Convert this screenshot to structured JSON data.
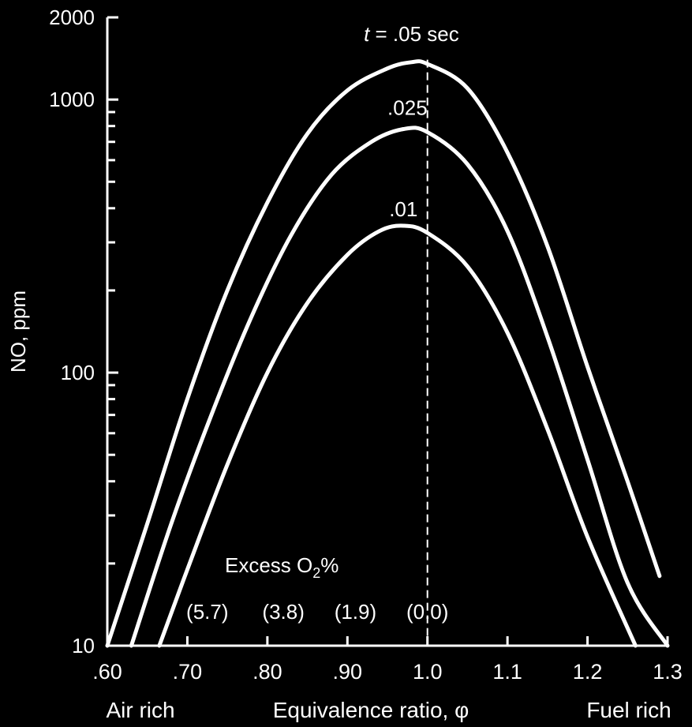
{
  "chart_data": {
    "type": "line",
    "xlabel": "Equivalence ratio, φ",
    "ylabel": "NO, ppm",
    "xlim": [
      0.6,
      1.3
    ],
    "ylim": [
      10,
      2000
    ],
    "y_scale": "log",
    "x_ticks": [
      0.6,
      0.7,
      0.8,
      0.9,
      1.0,
      1.1,
      1.2,
      1.3
    ],
    "x_tick_labels": [
      ".60",
      ".70",
      ".80",
      ".90",
      "1.0",
      "1.1",
      "1.2",
      "1.3"
    ],
    "y_tick_labels": [
      {
        "value": 10,
        "label": "10"
      },
      {
        "value": 100,
        "label": "100"
      },
      {
        "value": 1000,
        "label": "1000"
      },
      {
        "value": 2000,
        "label": "2000"
      }
    ],
    "x_side_labels": {
      "left": "Air rich",
      "right": "Fuel rich"
    },
    "reference_line": {
      "x": 1.0,
      "style": "dashed"
    },
    "series": [
      {
        "name": "t = .05 sec",
        "label_var": "t",
        "label_rest": " = .05 sec",
        "points": [
          [
            0.6,
            10
          ],
          [
            0.65,
            28
          ],
          [
            0.7,
            80
          ],
          [
            0.75,
            200
          ],
          [
            0.8,
            420
          ],
          [
            0.85,
            750
          ],
          [
            0.9,
            1080
          ],
          [
            0.95,
            1300
          ],
          [
            0.98,
            1370
          ],
          [
            1.0,
            1350
          ],
          [
            1.05,
            1100
          ],
          [
            1.1,
            640
          ],
          [
            1.15,
            290
          ],
          [
            1.2,
            105
          ],
          [
            1.25,
            40
          ],
          [
            1.29,
            18
          ]
        ]
      },
      {
        "name": ".025",
        "label_var": "",
        "label_rest": ".025",
        "points": [
          [
            0.63,
            10
          ],
          [
            0.68,
            28
          ],
          [
            0.73,
            70
          ],
          [
            0.78,
            160
          ],
          [
            0.83,
            320
          ],
          [
            0.88,
            530
          ],
          [
            0.93,
            700
          ],
          [
            0.97,
            780
          ],
          [
            1.0,
            760
          ],
          [
            1.05,
            580
          ],
          [
            1.1,
            330
          ],
          [
            1.15,
            135
          ],
          [
            1.2,
            48
          ],
          [
            1.25,
            17
          ],
          [
            1.3,
            10
          ]
        ]
      },
      {
        "name": ".01",
        "label_var": "",
        "label_rest": ".01",
        "points": [
          [
            0.665,
            10
          ],
          [
            0.7,
            19
          ],
          [
            0.75,
            46
          ],
          [
            0.8,
            100
          ],
          [
            0.85,
            180
          ],
          [
            0.9,
            270
          ],
          [
            0.94,
            330
          ],
          [
            0.97,
            345
          ],
          [
            1.0,
            325
          ],
          [
            1.05,
            245
          ],
          [
            1.1,
            140
          ],
          [
            1.15,
            62
          ],
          [
            1.2,
            25
          ],
          [
            1.26,
            10
          ]
        ]
      }
    ],
    "annotations": {
      "excess_o2_label": "Excess O",
      "excess_o2_sub": "2",
      "excess_o2_pct": "%",
      "excess_o2_values": [
        {
          "x": 0.725,
          "label": "(5.7)"
        },
        {
          "x": 0.82,
          "label": "(3.8)"
        },
        {
          "x": 0.91,
          "label": "(1.9)"
        },
        {
          "x": 1.0,
          "label": "(0.0)"
        }
      ]
    }
  }
}
